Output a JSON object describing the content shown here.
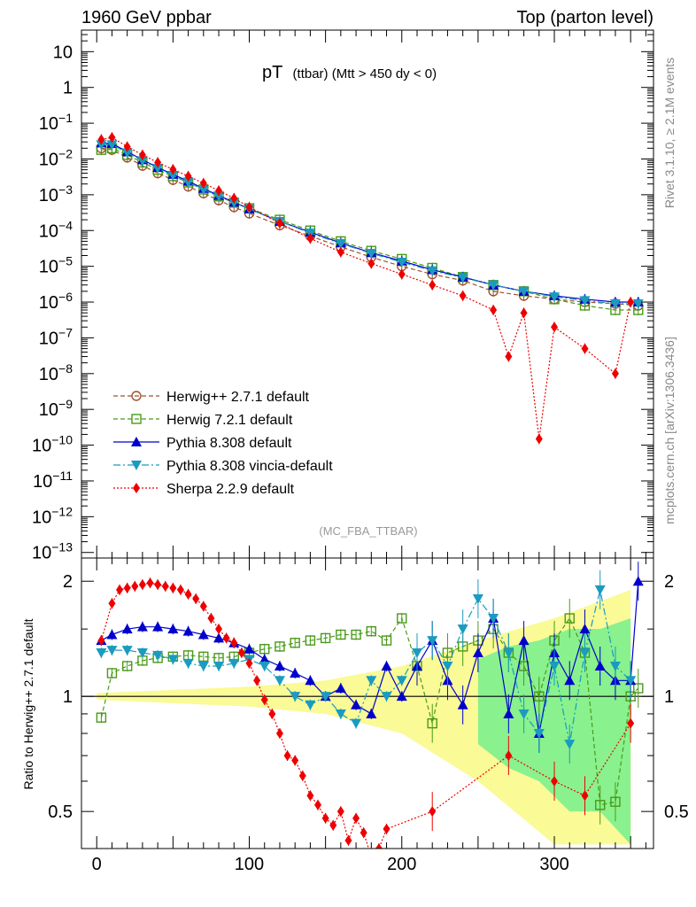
{
  "header": {
    "left": "1960 GeV ppbar",
    "right": "Top (parton level)"
  },
  "title": {
    "main": "pT",
    "sub": "(ttbar) (Mtt > 450 dy < 0)"
  },
  "side_label_top": "Rivet 3.1.10, ≥ 2.1M events",
  "side_label_bottom": "mcplots.cern.ch [arXiv:1306.3436]",
  "analysis_tag": "(MC_FBA_TTBAR)",
  "ratio_ylabel": "Ratio to Herwig++ 2.7.1 default",
  "colors": {
    "herwigpp": "#a0522d",
    "herwig7": "#4a9a1a",
    "pythia": "#0000cc",
    "vincia": "#1a9bbf",
    "sherpa": "#ee0000",
    "band_yellow": "#fafa8c",
    "band_green": "#7cf08c"
  },
  "chart_data": [
    {
      "type": "line",
      "panel": "main",
      "yscale": "log",
      "xlim": [
        -10,
        365
      ],
      "ylim": [
        7e-14,
        40
      ],
      "x_ticks": [
        0,
        100,
        200,
        300
      ],
      "y_tick_labels": [
        "10",
        "1",
        "10^-1",
        "10^-2",
        "10^-3",
        "10^-4",
        "10^-5",
        "10^-6",
        "10^-7",
        "10^-8",
        "10^-9",
        "10^-10",
        "10^-11",
        "10^-12",
        "10^-13"
      ],
      "legend_position": "lower-left",
      "series": [
        {
          "name": "Herwig++ 2.7.1 default",
          "marker": "circle-open",
          "line": "dashed",
          "x": [
            3,
            10,
            20,
            30,
            40,
            50,
            60,
            70,
            80,
            90,
            100,
            120,
            140,
            160,
            180,
            200,
            220,
            240,
            260,
            280,
            300,
            320,
            340,
            355
          ],
          "y": [
            0.02,
            0.018,
            0.011,
            0.0065,
            0.004,
            0.0026,
            0.0017,
            0.0011,
            0.0007,
            0.00045,
            0.0003,
            0.00014,
            7e-05,
            3.5e-05,
            1.8e-05,
            1e-05,
            6e-06,
            4e-06,
            2e-06,
            1.5e-06,
            1.2e-06,
            1e-06,
            9e-07,
            8e-07
          ]
        },
        {
          "name": "Herwig 7.2.1 default",
          "marker": "square-open",
          "line": "dashed",
          "x": [
            3,
            10,
            20,
            30,
            40,
            50,
            60,
            70,
            80,
            90,
            100,
            120,
            140,
            160,
            180,
            200,
            220,
            240,
            260,
            280,
            300,
            320,
            340,
            355
          ],
          "y": [
            0.018,
            0.02,
            0.013,
            0.008,
            0.005,
            0.0033,
            0.0022,
            0.0014,
            0.0009,
            0.0006,
            0.00042,
            0.0002,
            0.0001,
            5e-05,
            2.7e-05,
            1.6e-05,
            9e-06,
            5e-06,
            3e-06,
            2e-06,
            1.2e-06,
            8e-07,
            6e-07,
            6e-07
          ]
        },
        {
          "name": "Pythia 8.308 default",
          "marker": "triangle-up",
          "line": "solid",
          "x": [
            3,
            10,
            20,
            30,
            40,
            50,
            60,
            70,
            80,
            90,
            100,
            120,
            140,
            160,
            180,
            200,
            220,
            240,
            260,
            280,
            300,
            320,
            340,
            355
          ],
          "y": [
            0.028,
            0.027,
            0.016,
            0.0095,
            0.0058,
            0.0037,
            0.0024,
            0.0015,
            0.00095,
            0.00062,
            0.0004,
            0.00018,
            9e-05,
            4.5e-05,
            2.4e-05,
            1.4e-05,
            8e-06,
            5e-06,
            3e-06,
            2e-06,
            1.5e-06,
            1.2e-06,
            1e-06,
            1e-06
          ]
        },
        {
          "name": "Pythia 8.308 vincia-default",
          "marker": "triangle-down",
          "line": "dashdot",
          "x": [
            3,
            10,
            20,
            30,
            40,
            50,
            60,
            70,
            80,
            90,
            100,
            120,
            140,
            160,
            180,
            200,
            220,
            240,
            260,
            280,
            300,
            320,
            340,
            355
          ],
          "y": [
            0.025,
            0.025,
            0.015,
            0.009,
            0.0055,
            0.0035,
            0.0022,
            0.0014,
            0.0009,
            0.0006,
            0.0004,
            0.00018,
            8.5e-05,
            4.3e-05,
            2.3e-05,
            1.3e-05,
            7.5e-06,
            4.8e-06,
            3e-06,
            2e-06,
            1.4e-06,
            1.1e-06,
            9e-07,
            9e-07
          ]
        },
        {
          "name": "Sherpa 2.2.9 default",
          "marker": "diamond",
          "line": "dotted",
          "x": [
            3,
            10,
            20,
            30,
            40,
            50,
            60,
            70,
            80,
            90,
            100,
            120,
            140,
            160,
            180,
            200,
            220,
            240,
            260,
            270,
            280,
            290,
            300,
            320,
            340,
            350
          ],
          "y": [
            0.035,
            0.04,
            0.022,
            0.013,
            0.008,
            0.0051,
            0.0033,
            0.0021,
            0.0013,
            0.0008,
            0.00045,
            0.00016,
            6e-05,
            2.5e-05,
            1.2e-05,
            6e-06,
            3e-06,
            1.5e-06,
            6e-07,
            3e-08,
            5e-07,
            1.5e-10,
            2e-07,
            5e-08,
            1e-08,
            1e-06
          ]
        }
      ]
    },
    {
      "type": "line",
      "panel": "ratio",
      "xlim": [
        -10,
        365
      ],
      "ylim": [
        0.4,
        2.3
      ],
      "x_ticks": [
        0,
        100,
        200,
        300
      ],
      "y_ticks": [
        0.5,
        1,
        2
      ],
      "reference": 1,
      "bands": [
        {
          "name": "yellow",
          "x": [
            0,
            100,
            150,
            200,
            250,
            300,
            350
          ],
          "halfwidth": [
            0.02,
            0.06,
            0.1,
            0.2,
            0.4,
            0.6,
            0.9
          ]
        },
        {
          "name": "green",
          "x": [
            250,
            270,
            290,
            310,
            330,
            350
          ],
          "halfwidth": [
            0.25,
            0.35,
            0.4,
            0.5,
            0.5,
            0.6
          ]
        }
      ],
      "series": [
        {
          "name": "Herwig 7.2.1 default",
          "x": [
            3,
            10,
            20,
            30,
            40,
            50,
            60,
            70,
            80,
            90,
            100,
            110,
            120,
            130,
            140,
            150,
            160,
            170,
            180,
            190,
            200,
            210,
            220,
            230,
            240,
            250,
            260,
            270,
            280,
            290,
            300,
            310,
            320,
            330,
            340,
            350,
            355
          ],
          "y": [
            0.88,
            1.15,
            1.2,
            1.24,
            1.26,
            1.27,
            1.28,
            1.27,
            1.26,
            1.27,
            1.3,
            1.33,
            1.35,
            1.38,
            1.4,
            1.42,
            1.45,
            1.45,
            1.48,
            1.4,
            1.6,
            1.2,
            0.85,
            1.3,
            1.35,
            1.4,
            1.5,
            1.3,
            1.2,
            1.0,
            1.4,
            1.6,
            1.3,
            0.52,
            0.53,
            1.0,
            1.05
          ]
        },
        {
          "name": "Pythia 8.308 default",
          "x": [
            3,
            10,
            20,
            30,
            40,
            50,
            60,
            70,
            80,
            90,
            100,
            110,
            120,
            130,
            140,
            150,
            160,
            170,
            180,
            190,
            200,
            210,
            220,
            230,
            240,
            250,
            260,
            270,
            280,
            290,
            300,
            310,
            320,
            330,
            340,
            350,
            355
          ],
          "y": [
            1.4,
            1.45,
            1.5,
            1.52,
            1.52,
            1.5,
            1.48,
            1.45,
            1.42,
            1.38,
            1.33,
            1.25,
            1.2,
            1.15,
            1.1,
            1.0,
            1.05,
            0.95,
            0.9,
            1.2,
            1.0,
            1.2,
            1.4,
            1.1,
            0.95,
            1.3,
            1.6,
            0.9,
            1.4,
            0.8,
            1.3,
            1.1,
            1.5,
            1.2,
            1.1,
            1.1,
            2.0
          ]
        },
        {
          "name": "Pythia 8.308 vincia-default",
          "x": [
            3,
            10,
            20,
            30,
            40,
            50,
            60,
            70,
            80,
            90,
            100,
            110,
            120,
            130,
            140,
            150,
            160,
            170,
            180,
            190,
            200,
            210,
            220,
            230,
            240,
            250,
            260,
            270,
            280,
            290,
            300,
            310,
            320,
            330,
            340,
            350
          ],
          "y": [
            1.3,
            1.32,
            1.32,
            1.3,
            1.28,
            1.25,
            1.22,
            1.2,
            1.2,
            1.22,
            1.25,
            1.2,
            1.1,
            1.0,
            0.95,
            1.0,
            0.9,
            0.85,
            1.1,
            1.0,
            1.1,
            1.3,
            1.4,
            1.2,
            1.5,
            1.8,
            1.6,
            1.3,
            0.9,
            0.8,
            1.2,
            0.75,
            1.3,
            1.9,
            1.2,
            1.1
          ]
        },
        {
          "name": "Sherpa 2.2.9 default",
          "x": [
            3,
            10,
            15,
            20,
            25,
            30,
            35,
            40,
            45,
            50,
            55,
            60,
            65,
            70,
            75,
            80,
            85,
            90,
            95,
            100,
            105,
            110,
            115,
            120,
            125,
            130,
            135,
            140,
            145,
            150,
            155,
            160,
            165,
            170,
            175,
            180,
            185,
            190,
            220,
            270,
            300,
            320,
            350
          ],
          "y": [
            1.4,
            1.75,
            1.9,
            1.92,
            1.94,
            1.96,
            1.98,
            1.96,
            1.94,
            1.92,
            1.9,
            1.85,
            1.8,
            1.72,
            1.6,
            1.5,
            1.42,
            1.38,
            1.3,
            1.22,
            1.1,
            0.98,
            0.9,
            0.8,
            0.7,
            0.68,
            0.62,
            0.55,
            0.52,
            0.48,
            0.46,
            0.5,
            0.42,
            0.48,
            0.44,
            0.38,
            0.4,
            0.45,
            0.5,
            0.7,
            0.6,
            0.55,
            0.85
          ]
        }
      ]
    }
  ]
}
